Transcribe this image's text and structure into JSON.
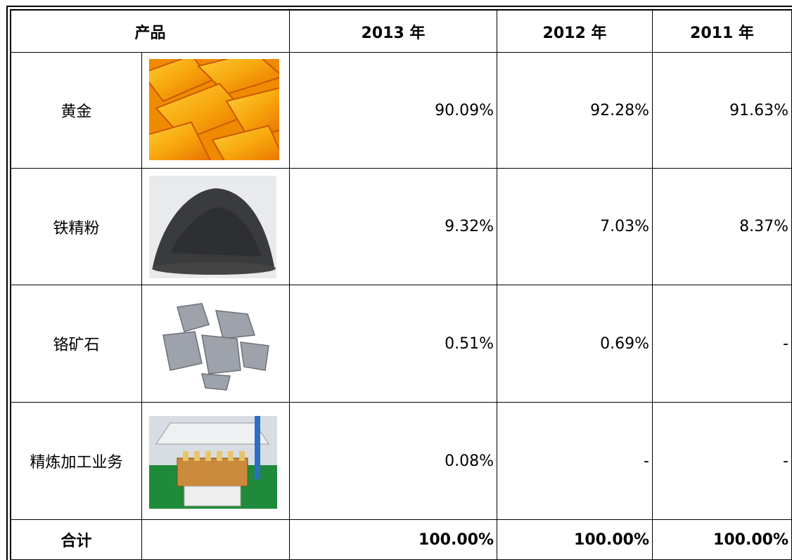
{
  "table": {
    "header": [
      "产品",
      "2013 年",
      "2012 年",
      "2011 年"
    ],
    "rows": [
      [
        "黄金",
        "90.09%",
        "92.28%",
        "91.63%"
      ],
      [
        "铁精粉",
        "9.32%",
        "7.03%",
        "8.37%"
      ],
      [
        "铬矿石",
        "0.51%",
        "0.69%",
        "-"
      ],
      [
        "精炼加工业务",
        "0.08%",
        "-",
        "-"
      ]
    ],
    "total": [
      "合计",
      "100.00%",
      "100.00%",
      "100.00%"
    ]
  }
}
